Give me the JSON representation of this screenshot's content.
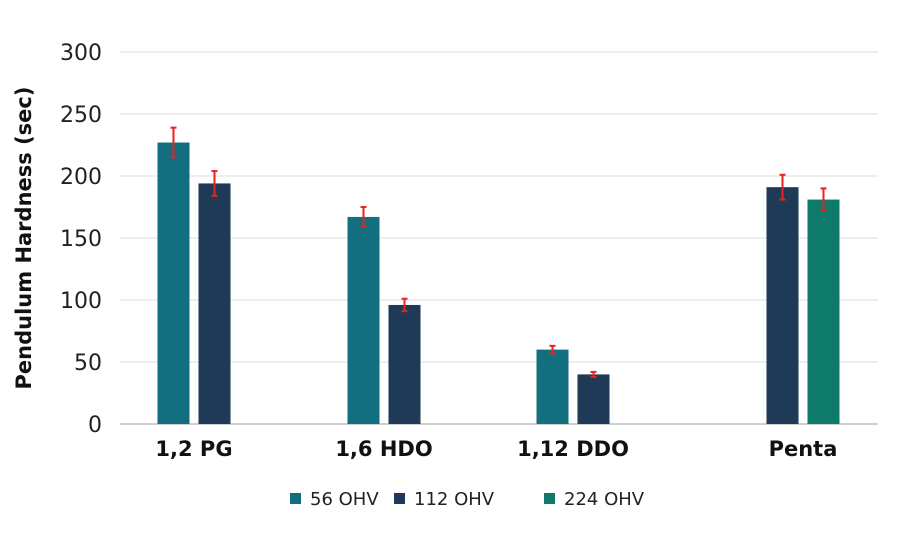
{
  "chart_data": {
    "type": "bar",
    "title": "",
    "xlabel": "",
    "ylabel": "Pendulum Hardness (sec)",
    "ylim": [
      0,
      300
    ],
    "yticks": [
      0,
      50,
      100,
      150,
      200,
      250,
      300
    ],
    "grid": true,
    "legend_position": "bottom",
    "categories": [
      "1,2 PG",
      "1,6 HDO",
      "1,12 DDO",
      "Penta"
    ],
    "series": [
      {
        "name": "56 OHV",
        "color": "#136f80",
        "values": [
          227,
          167,
          60,
          null
        ],
        "errors": [
          12,
          8,
          3,
          null
        ]
      },
      {
        "name": "112 OHV",
        "color": "#1e3a56",
        "values": [
          194,
          96,
          40,
          191
        ],
        "errors": [
          10,
          5,
          2,
          10
        ]
      },
      {
        "name": "224 OHV",
        "color": "#0e7a6a",
        "values": [
          null,
          null,
          null,
          181
        ],
        "errors": [
          null,
          null,
          null,
          9
        ]
      }
    ],
    "error_bar_color": "#e8231f"
  }
}
